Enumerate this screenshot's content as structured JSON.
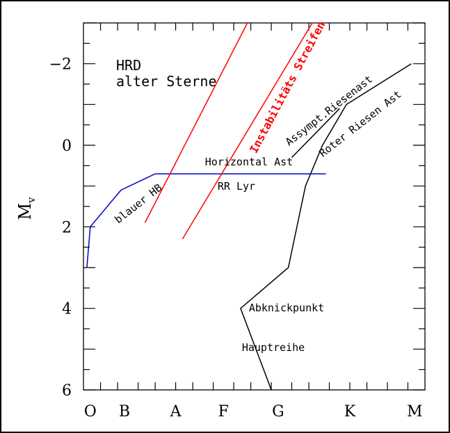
{
  "chart_data": {
    "type": "line",
    "title": "HRD\nalter Sterne",
    "xlabel": "",
    "ylabel": "M_v",
    "ylim": [
      6,
      -3
    ],
    "y_ticks": [
      {
        "v": -2,
        "label": "−2"
      },
      {
        "v": 0,
        "label": "0"
      },
      {
        "v": 2,
        "label": "2"
      },
      {
        "v": 4,
        "label": "4"
      },
      {
        "v": 6,
        "label": "6"
      }
    ],
    "x_categories": [
      "O",
      "B",
      "A",
      "F",
      "G",
      "K",
      "M"
    ],
    "colors": {
      "axes": "#000000",
      "branches": "#000000",
      "horizontal_branch": "#0000cc",
      "instability_strip": "#ff0000"
    },
    "series": [
      {
        "name": "Hauptreihe / Roter Riesen Ast",
        "color": "#000000",
        "points": [
          [
            0.55,
            6.0
          ],
          [
            0.46,
            4.0
          ],
          [
            0.6,
            3.0
          ],
          [
            0.65,
            1.0
          ],
          [
            0.7,
            0.0
          ],
          [
            0.77,
            -1.0
          ],
          [
            0.96,
            -2.0
          ]
        ]
      },
      {
        "name": "Assympt.Riesenast",
        "color": "#000000",
        "points": [
          [
            0.61,
            0.3
          ],
          [
            0.75,
            -0.9
          ]
        ]
      },
      {
        "name": "Horizontal Ast",
        "color": "#0000cc",
        "points": [
          [
            0.01,
            3.0
          ],
          [
            0.02,
            2.0
          ],
          [
            0.11,
            1.1
          ],
          [
            0.21,
            0.7
          ],
          [
            0.71,
            0.7
          ]
        ]
      },
      {
        "name": "Instabilitäts Streifen (blau)",
        "color": "#ff0000",
        "points": [
          [
            0.18,
            1.9
          ],
          [
            0.48,
            -3.0
          ]
        ]
      },
      {
        "name": "Instabilitäts Streifen (rot)",
        "color": "#ff0000",
        "points": [
          [
            0.29,
            2.3
          ],
          [
            0.67,
            -3.0
          ]
        ]
      }
    ],
    "annotations": [
      {
        "text": "Instabilitäts Streifen",
        "color": "#ff0000",
        "bold": true
      },
      {
        "text": "Assympt.Riesenast",
        "color": "#000000"
      },
      {
        "text": "Roter Riesen Ast",
        "color": "#000000"
      },
      {
        "text": "Horizontal Ast",
        "color": "#000000"
      },
      {
        "text": "RR Lyr",
        "color": "#000000"
      },
      {
        "text": "blauer HB",
        "color": "#000000"
      },
      {
        "text": "Abknickpunkt",
        "color": "#000000"
      },
      {
        "text": "Hauptreihe",
        "color": "#000000"
      }
    ]
  }
}
